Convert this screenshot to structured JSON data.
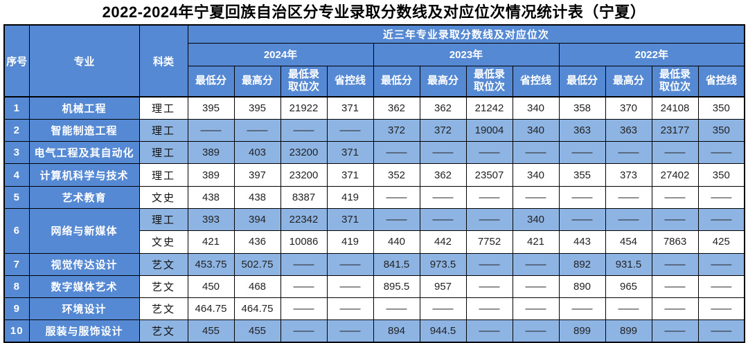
{
  "title": "2022-2024年宁夏回族自治区分专业录取分数线及对应位次情况统计表（宁夏）",
  "colors": {
    "header_blue": "#5589D3",
    "row_shade_blue": "#8EB4E3",
    "border": "#000000",
    "header_text": "#FFFFFF"
  },
  "table": {
    "header": {
      "col_no": "序号",
      "col_major": "专业",
      "col_category": "科类",
      "span_title": "近三年专业录取分数线及对应位次",
      "years": [
        "2024年",
        "2023年",
        "2022年"
      ],
      "subcols": [
        "最低分",
        "最高分",
        "最低录取位次",
        "省控线"
      ]
    },
    "rows": [
      {
        "no": "1",
        "major": "机械工程",
        "sub": [
          {
            "category": "理工",
            "shaded": false,
            "values": [
              "395",
              "395",
              "21922",
              "371",
              "362",
              "362",
              "21242",
              "340",
              "358",
              "370",
              "24108",
              "350"
            ]
          }
        ]
      },
      {
        "no": "2",
        "major": "智能制造工程",
        "sub": [
          {
            "category": "理工",
            "shaded": true,
            "values": [
              "——",
              "——",
              "——",
              "——",
              "372",
              "372",
              "19004",
              "340",
              "363",
              "363",
              "23177",
              "350"
            ]
          }
        ]
      },
      {
        "no": "3",
        "major": "电气工程及其自动化",
        "sub": [
          {
            "category": "理工",
            "shaded": true,
            "values": [
              "389",
              "403",
              "23200",
              "371",
              "——",
              "——",
              "——",
              "——",
              "——",
              "——",
              "——",
              "——"
            ]
          }
        ]
      },
      {
        "no": "4",
        "major": "计算机科学与技术",
        "sub": [
          {
            "category": "理工",
            "shaded": false,
            "values": [
              "389",
              "397",
              "23200",
              "371",
              "352",
              "362",
              "23507",
              "340",
              "355",
              "373",
              "27402",
              "350"
            ]
          }
        ]
      },
      {
        "no": "5",
        "major": "艺术教育",
        "sub": [
          {
            "category": "文史",
            "shaded": false,
            "values": [
              "438",
              "438",
              "8387",
              "419",
              "——",
              "——",
              "——",
              "——",
              "——",
              "——",
              "——",
              "——"
            ]
          }
        ]
      },
      {
        "no": "6",
        "major": "网络与新媒体",
        "sub": [
          {
            "category": "理工",
            "shaded": true,
            "values": [
              "393",
              "394",
              "22342",
              "371",
              "——",
              "——",
              "——",
              "340",
              "——",
              "——",
              "——",
              "——"
            ]
          },
          {
            "category": "文史",
            "shaded": false,
            "values": [
              "421",
              "436",
              "10086",
              "419",
              "440",
              "442",
              "7752",
              "421",
              "443",
              "454",
              "7863",
              "425"
            ]
          }
        ]
      },
      {
        "no": "7",
        "major": "视觉传达设计",
        "sub": [
          {
            "category": "艺文",
            "shaded": true,
            "values": [
              "453.75",
              "502.75",
              "——",
              "——",
              "841.5",
              "973.5",
              "——",
              "——",
              "892",
              "931.5",
              "——",
              "——"
            ]
          }
        ]
      },
      {
        "no": "8",
        "major": "数字媒体艺术",
        "sub": [
          {
            "category": "艺文",
            "shaded": false,
            "values": [
              "450",
              "468",
              "——",
              "——",
              "895.5",
              "957",
              "——",
              "——",
              "890",
              "965",
              "——",
              "——"
            ]
          }
        ]
      },
      {
        "no": "9",
        "major": "环境设计",
        "sub": [
          {
            "category": "艺文",
            "shaded": false,
            "values": [
              "464.75",
              "464.75",
              "——",
              "——",
              "——",
              "——",
              "——",
              "——",
              "——",
              "——",
              "——",
              "——"
            ]
          }
        ]
      },
      {
        "no": "10",
        "major": "服装与服饰设计",
        "sub": [
          {
            "category": "艺文",
            "shaded": true,
            "values": [
              "455",
              "455",
              "——",
              "——",
              "894",
              "944.5",
              "——",
              "——",
              "899",
              "899",
              "——",
              "——"
            ]
          }
        ]
      }
    ]
  }
}
